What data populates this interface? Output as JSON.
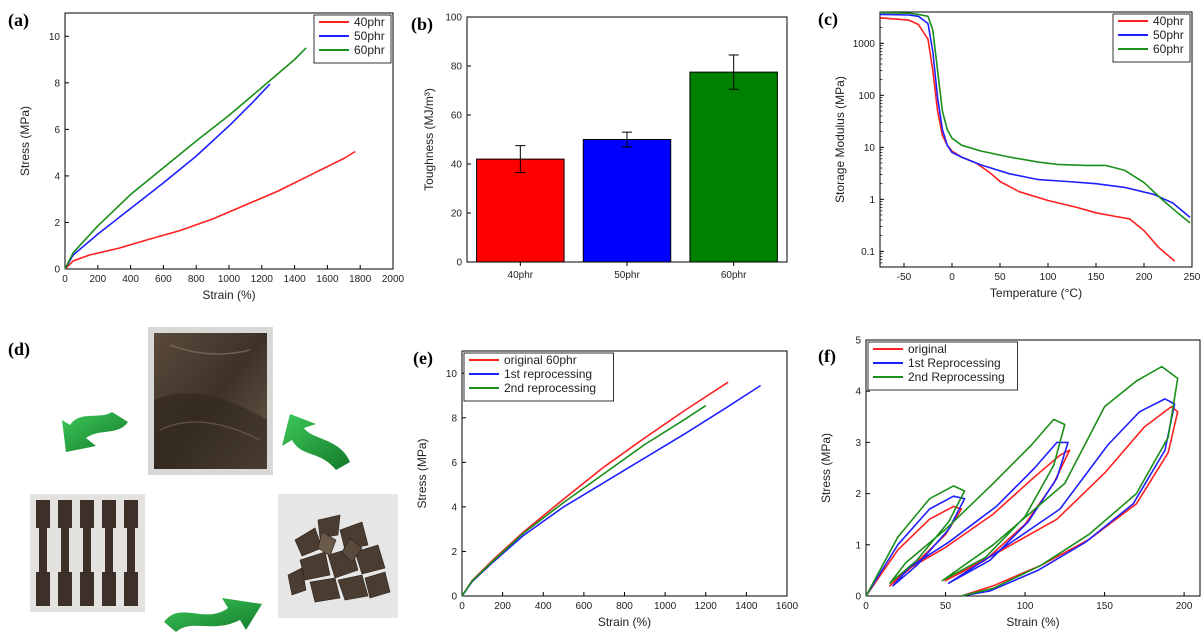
{
  "chart_data": [
    {
      "panel": "(a)",
      "type": "line",
      "xlabel": "Strain (%)",
      "ylabel": "Stress (MPa)",
      "xlim": [
        0,
        2000
      ],
      "ylim": [
        0,
        11
      ],
      "xticks": [
        0,
        200,
        400,
        600,
        800,
        1000,
        1200,
        1400,
        1600,
        1800,
        2000
      ],
      "yticks": [
        0,
        2,
        4,
        6,
        8,
        10
      ],
      "legend_position": "top-right",
      "series": [
        {
          "name": "40phr",
          "color": "#ff2020",
          "points": [
            [
              0,
              0
            ],
            [
              50,
              0.35
            ],
            [
              150,
              0.6
            ],
            [
              330,
              0.9
            ],
            [
              500,
              1.25
            ],
            [
              700,
              1.65
            ],
            [
              900,
              2.15
            ],
            [
              1100,
              2.75
            ],
            [
              1300,
              3.35
            ],
            [
              1500,
              4.05
            ],
            [
              1700,
              4.75
            ],
            [
              1770,
              5.05
            ]
          ]
        },
        {
          "name": "50phr",
          "color": "#2020ff",
          "points": [
            [
              0,
              0
            ],
            [
              50,
              0.6
            ],
            [
              200,
              1.5
            ],
            [
              400,
              2.6
            ],
            [
              600,
              3.7
            ],
            [
              800,
              4.85
            ],
            [
              1000,
              6.15
            ],
            [
              1150,
              7.2
            ],
            [
              1250,
              7.95
            ]
          ]
        },
        {
          "name": "60phr",
          "color": "#1a8f1a",
          "points": [
            [
              0,
              0
            ],
            [
              50,
              0.7
            ],
            [
              200,
              1.85
            ],
            [
              400,
              3.2
            ],
            [
              600,
              4.35
            ],
            [
              800,
              5.5
            ],
            [
              1000,
              6.6
            ],
            [
              1200,
              7.8
            ],
            [
              1400,
              9.0
            ],
            [
              1470,
              9.5
            ]
          ]
        }
      ]
    },
    {
      "panel": "(b)",
      "type": "bar",
      "ylabel": "Toughness (MJ/m³)",
      "ylim": [
        0,
        100
      ],
      "yticks": [
        0,
        20,
        40,
        60,
        80,
        100
      ],
      "categories": [
        "40phr",
        "50phr",
        "60phr"
      ],
      "values": [
        42,
        50,
        77.5
      ],
      "errors": [
        5.5,
        3,
        7
      ],
      "colors": [
        "#ff0000",
        "#0000ff",
        "#008000"
      ]
    },
    {
      "panel": "(c)",
      "type": "line",
      "xlabel": "Temperature (°C)",
      "ylabel": "Storage Modulus (MPa)",
      "xscale": "linear",
      "yscale": "log",
      "xlim": [
        -75,
        250
      ],
      "ylim": [
        0.05,
        4000
      ],
      "xticks": [
        -50,
        0,
        50,
        100,
        150,
        200,
        250
      ],
      "yticks": [
        0.1,
        1,
        10,
        100,
        1000
      ],
      "legend_position": "top-right",
      "series": [
        {
          "name": "40phr",
          "color": "#ff2020",
          "points": [
            [
              -75,
              3100
            ],
            [
              -45,
              2800
            ],
            [
              -35,
              2300
            ],
            [
              -25,
              1200
            ],
            [
              -20,
              300
            ],
            [
              -15,
              50
            ],
            [
              -10,
              17
            ],
            [
              -5,
              11
            ],
            [
              0,
              8.5
            ],
            [
              10,
              6.5
            ],
            [
              25,
              5
            ],
            [
              40,
              3.2
            ],
            [
              50,
              2.2
            ],
            [
              70,
              1.4
            ],
            [
              100,
              0.95
            ],
            [
              130,
              0.7
            ],
            [
              150,
              0.55
            ],
            [
              170,
              0.47
            ],
            [
              185,
              0.42
            ],
            [
              200,
              0.25
            ],
            [
              215,
              0.12
            ],
            [
              232,
              0.065
            ]
          ]
        },
        {
          "name": "50phr",
          "color": "#2020ff",
          "points": [
            [
              -75,
              3600
            ],
            [
              -45,
              3500
            ],
            [
              -35,
              3300
            ],
            [
              -25,
              2400
            ],
            [
              -20,
              700
            ],
            [
              -15,
              90
            ],
            [
              -10,
              22
            ],
            [
              -5,
              11
            ],
            [
              0,
              8
            ],
            [
              10,
              6.5
            ],
            [
              30,
              4.6
            ],
            [
              60,
              3.1
            ],
            [
              90,
              2.4
            ],
            [
              120,
              2.2
            ],
            [
              150,
              2.0
            ],
            [
              180,
              1.7
            ],
            [
              210,
              1.25
            ],
            [
              230,
              0.85
            ],
            [
              248,
              0.45
            ]
          ]
        },
        {
          "name": "60phr",
          "color": "#1a8f1a",
          "points": [
            [
              -75,
              3900
            ],
            [
              -45,
              3800
            ],
            [
              -35,
              3600
            ],
            [
              -25,
              3300
            ],
            [
              -20,
              1800
            ],
            [
              -15,
              300
            ],
            [
              -10,
              50
            ],
            [
              -5,
              22
            ],
            [
              0,
              15
            ],
            [
              10,
              11
            ],
            [
              30,
              8.5
            ],
            [
              60,
              6.5
            ],
            [
              90,
              5.2
            ],
            [
              110,
              4.7
            ],
            [
              140,
              4.5
            ],
            [
              160,
              4.5
            ],
            [
              180,
              3.6
            ],
            [
              200,
              2.1
            ],
            [
              220,
              0.95
            ],
            [
              235,
              0.55
            ],
            [
              248,
              0.35
            ]
          ]
        }
      ]
    },
    {
      "panel": "(e)",
      "type": "line",
      "xlabel": "Strain (%)",
      "ylabel": "Stress (MPa)",
      "xlim": [
        0,
        1600
      ],
      "ylim": [
        0,
        11
      ],
      "xticks": [
        0,
        200,
        400,
        600,
        800,
        1000,
        1200,
        1400,
        1600
      ],
      "yticks": [
        0,
        2,
        4,
        6,
        8,
        10
      ],
      "legend_position": "top-left",
      "series": [
        {
          "name": "original 60phr",
          "color": "#ff2020",
          "points": [
            [
              0,
              0
            ],
            [
              50,
              0.7
            ],
            [
              150,
              1.6
            ],
            [
              300,
              2.85
            ],
            [
              500,
              4.35
            ],
            [
              700,
              5.8
            ],
            [
              900,
              7.1
            ],
            [
              1100,
              8.35
            ],
            [
              1310,
              9.6
            ]
          ]
        },
        {
          "name": "1st reprocessing",
          "color": "#2020ff",
          "points": [
            [
              0,
              0
            ],
            [
              50,
              0.65
            ],
            [
              150,
              1.5
            ],
            [
              300,
              2.7
            ],
            [
              500,
              4.0
            ],
            [
              700,
              5.1
            ],
            [
              900,
              6.2
            ],
            [
              1100,
              7.3
            ],
            [
              1300,
              8.45
            ],
            [
              1470,
              9.45
            ]
          ]
        },
        {
          "name": "2nd reprocessing",
          "color": "#1a8f1a",
          "points": [
            [
              0,
              0
            ],
            [
              50,
              0.68
            ],
            [
              150,
              1.55
            ],
            [
              300,
              2.8
            ],
            [
              500,
              4.2
            ],
            [
              700,
              5.5
            ],
            [
              900,
              6.8
            ],
            [
              1100,
              7.95
            ],
            [
              1200,
              8.55
            ]
          ]
        }
      ]
    },
    {
      "panel": "(f)",
      "type": "line",
      "xlabel": "Strain (%)",
      "ylabel": "Stress (MPa)",
      "xlim": [
        0,
        210
      ],
      "ylim": [
        0,
        5
      ],
      "xticks": [
        0,
        50,
        100,
        150,
        200
      ],
      "yticks": [
        0,
        1,
        2,
        3,
        4,
        5
      ],
      "legend_position": "top-left",
      "series": [
        {
          "name": "original",
          "color": "#ff2020",
          "points": [
            [
              0,
              0
            ],
            [
              20,
              0.9
            ],
            [
              40,
              1.5
            ],
            [
              55,
              1.75
            ],
            [
              60,
              1.7
            ],
            [
              50,
              1.2
            ],
            [
              30,
              0.6
            ],
            [
              15,
              0.2
            ],
            [
              25,
              0.5
            ],
            [
              50,
              0.95
            ],
            [
              80,
              1.6
            ],
            [
              105,
              2.3
            ],
            [
              122,
              2.75
            ],
            [
              128,
              2.85
            ],
            [
              118,
              2.2
            ],
            [
              100,
              1.4
            ],
            [
              75,
              0.7
            ],
            [
              50,
              0.3
            ],
            [
              80,
              0.8
            ],
            [
              120,
              1.5
            ],
            [
              150,
              2.4
            ],
            [
              175,
              3.3
            ],
            [
              192,
              3.7
            ],
            [
              196,
              3.6
            ],
            [
              190,
              2.8
            ],
            [
              170,
              1.8
            ],
            [
              140,
              1.1
            ],
            [
              110,
              0.6
            ],
            [
              80,
              0.2
            ],
            [
              60,
              0
            ]
          ]
        },
        {
          "name": "1st Reprocessing",
          "color": "#2020ff",
          "points": [
            [
              0,
              0
            ],
            [
              20,
              1.0
            ],
            [
              40,
              1.7
            ],
            [
              55,
              1.95
            ],
            [
              62,
              1.9
            ],
            [
              52,
              1.3
            ],
            [
              32,
              0.6
            ],
            [
              17,
              0.2
            ],
            [
              27,
              0.55
            ],
            [
              52,
              1.05
            ],
            [
              82,
              1.75
            ],
            [
              106,
              2.5
            ],
            [
              120,
              3.0
            ],
            [
              127,
              3.0
            ],
            [
              120,
              2.3
            ],
            [
              102,
              1.45
            ],
            [
              78,
              0.7
            ],
            [
              52,
              0.25
            ],
            [
              82,
              0.85
            ],
            [
              122,
              1.7
            ],
            [
              152,
              2.95
            ],
            [
              172,
              3.6
            ],
            [
              188,
              3.85
            ],
            [
              194,
              3.75
            ],
            [
              188,
              2.85
            ],
            [
              168,
              1.8
            ],
            [
              138,
              1.05
            ],
            [
              108,
              0.5
            ],
            [
              78,
              0.1
            ],
            [
              60,
              0
            ]
          ]
        },
        {
          "name": "2nd Reprocessing",
          "color": "#1a8f1a",
          "points": [
            [
              0,
              0
            ],
            [
              20,
              1.15
            ],
            [
              40,
              1.9
            ],
            [
              55,
              2.15
            ],
            [
              62,
              2.05
            ],
            [
              52,
              1.45
            ],
            [
              32,
              0.7
            ],
            [
              15,
              0.25
            ],
            [
              25,
              0.65
            ],
            [
              50,
              1.3
            ],
            [
              80,
              2.2
            ],
            [
              104,
              2.95
            ],
            [
              118,
              3.45
            ],
            [
              125,
              3.35
            ],
            [
              118,
              2.55
            ],
            [
              100,
              1.55
            ],
            [
              75,
              0.75
            ],
            [
              48,
              0.3
            ],
            [
              80,
              1.0
            ],
            [
              125,
              2.2
            ],
            [
              150,
              3.7
            ],
            [
              170,
              4.2
            ],
            [
              186,
              4.48
            ],
            [
              196,
              4.25
            ],
            [
              190,
              3.1
            ],
            [
              170,
              2.0
            ],
            [
              140,
              1.2
            ],
            [
              110,
              0.6
            ],
            [
              80,
              0.15
            ],
            [
              60,
              0
            ]
          ]
        }
      ]
    }
  ],
  "panel_d": {
    "label": "(d)",
    "arrow_color": "#1faa3c",
    "images": [
      "molded-sheet",
      "dumbbell-specimens",
      "shredded-pieces"
    ]
  }
}
